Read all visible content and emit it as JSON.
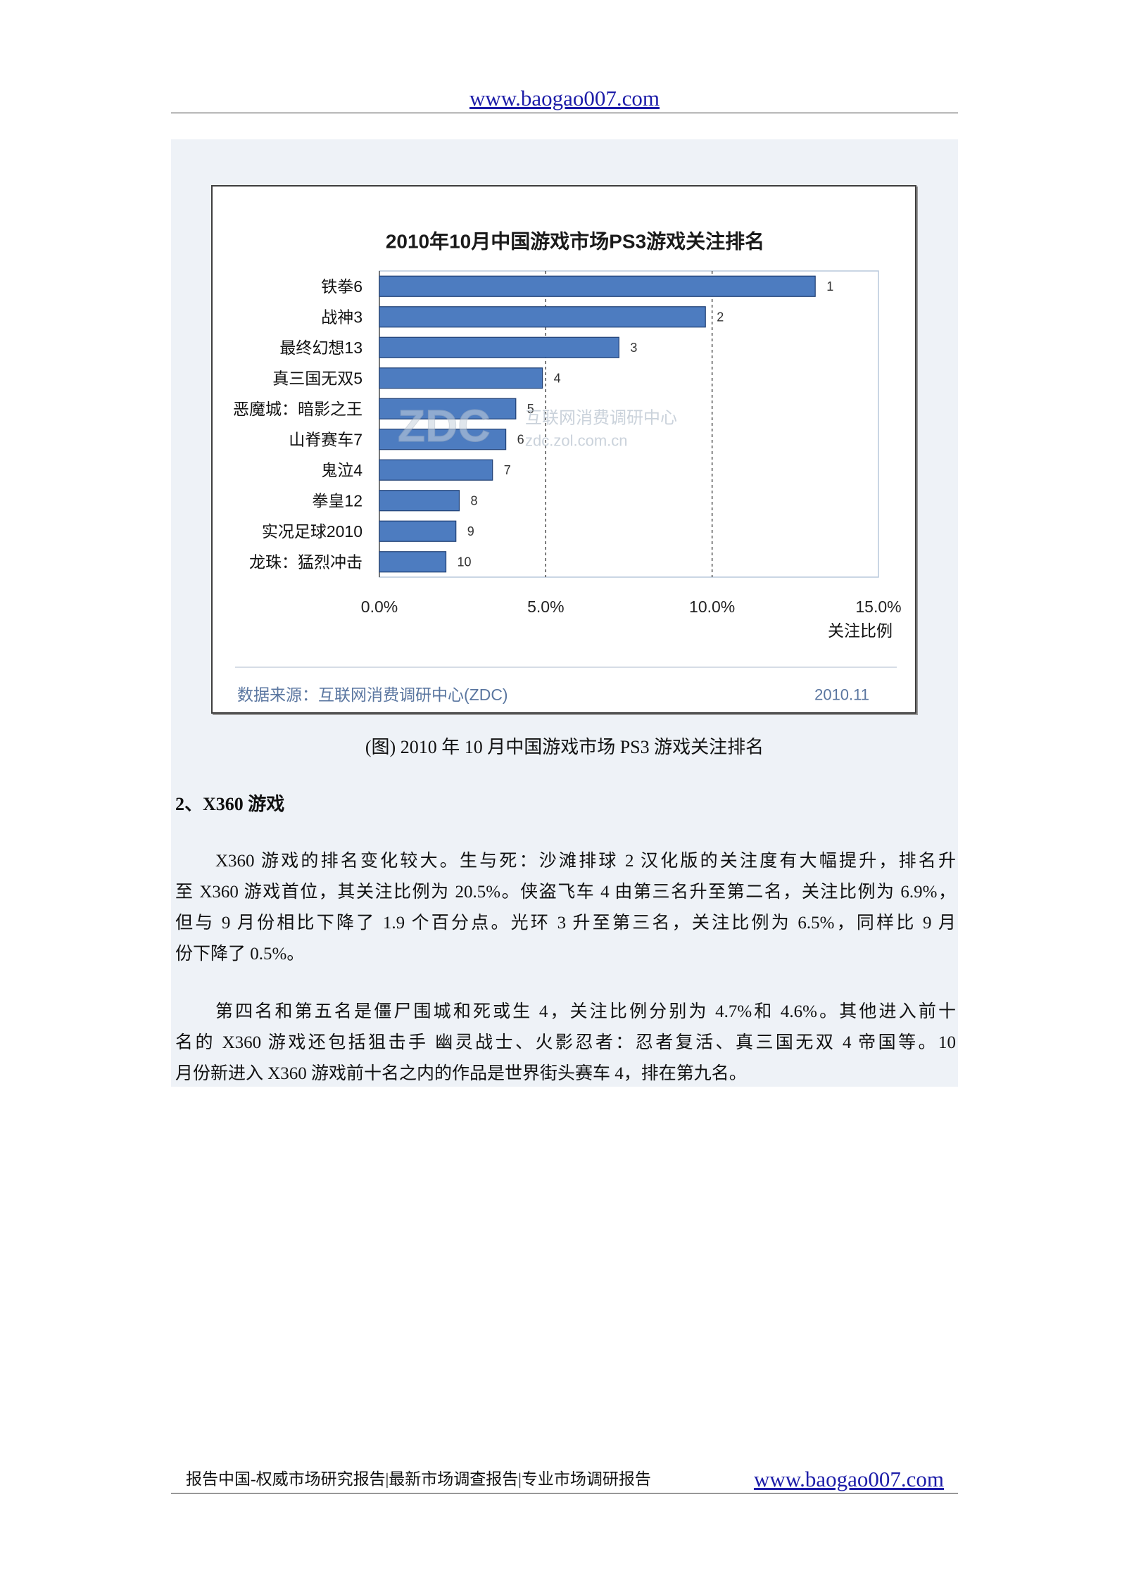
{
  "header": {
    "site_link": "www.baogao007.com"
  },
  "chart_data": {
    "type": "bar",
    "orientation": "horizontal",
    "title": "2010年10月中国游戏市场PS3游戏关注排名",
    "categories": [
      "铁拳6",
      "战神3",
      "最终幻想13",
      "真三国无双5",
      "恶魔城：暗影之王",
      "山脊赛车7",
      "鬼泣4",
      "拳皇12",
      "实况足球2010",
      "龙珠：猛烈冲击"
    ],
    "values": [
      13.1,
      9.8,
      7.2,
      4.9,
      4.1,
      3.8,
      3.4,
      2.4,
      2.3,
      2.0
    ],
    "unit": "%",
    "data_labels": [
      "1",
      "2",
      "3",
      "4",
      "5",
      "6",
      "7",
      "8",
      "9",
      "10"
    ],
    "xlabel": "关注比例",
    "xlim": [
      0,
      15
    ],
    "x_ticks": [
      0,
      5,
      10,
      15
    ],
    "x_tick_labels": [
      "0.0%",
      "5.0%",
      "10.0%",
      "15.0%"
    ],
    "grid": true,
    "grid_style": "dashed",
    "grid_values": [
      5,
      10
    ],
    "legend": "none",
    "source": "数据来源：互联网消费调研中心(ZDC)",
    "date": "2010.11",
    "watermark": {
      "logo": "ZDC",
      "name": "互联网消费调研中心",
      "url": "zdc.zol.com.cn"
    },
    "colors": {
      "bar": "#4d7cc0",
      "bar_edge": "#1f3f74",
      "source_text": "#5a76a0",
      "grid": "#333333",
      "plot_frame": "#b8c8dc"
    }
  },
  "figure_caption": "(图) 2010 年 10 月中国游戏市场 PS3 游戏关注排名",
  "section": {
    "heading": "2、X360 游戏",
    "paragraphs": [
      {
        "lines": [
          "X360 游戏的排名变化较大。生与死：沙滩排球 2  汉化版的关注度有大幅提升，排名升",
          "至 X360 游戏首位，其关注比例为 20.5%。侠盗飞车 4 由第三名升至第二名，关注比例为 6.9%，",
          "但与 9 月份相比下降了 1.9 个百分点。光环 3 升至第三名，关注比例为 6.5%，同样比 9 月",
          "份下降了 0.5%。"
        ]
      },
      {
        "lines": [
          "第四名和第五名是僵尸围城和死或生 4，关注比例分别为 4.7%和 4.6%。其他进入前十",
          "名的 X360 游戏还包括狙击手  幽灵战士、火影忍者：忍者复活、真三国无双 4 帝国等。10",
          "月份新进入 X360 游戏前十名之内的作品是世界街头赛车 4，排在第九名。"
        ]
      }
    ]
  },
  "footer": {
    "slogan": "报告中国-权威市场研究报告|最新市场调查报告|专业市场调研报告",
    "site_link": "www.baogao007.com"
  },
  "colors": {
    "link": "#1c1ca8",
    "panel_background": "#eef2f7",
    "rule": "#333333"
  }
}
